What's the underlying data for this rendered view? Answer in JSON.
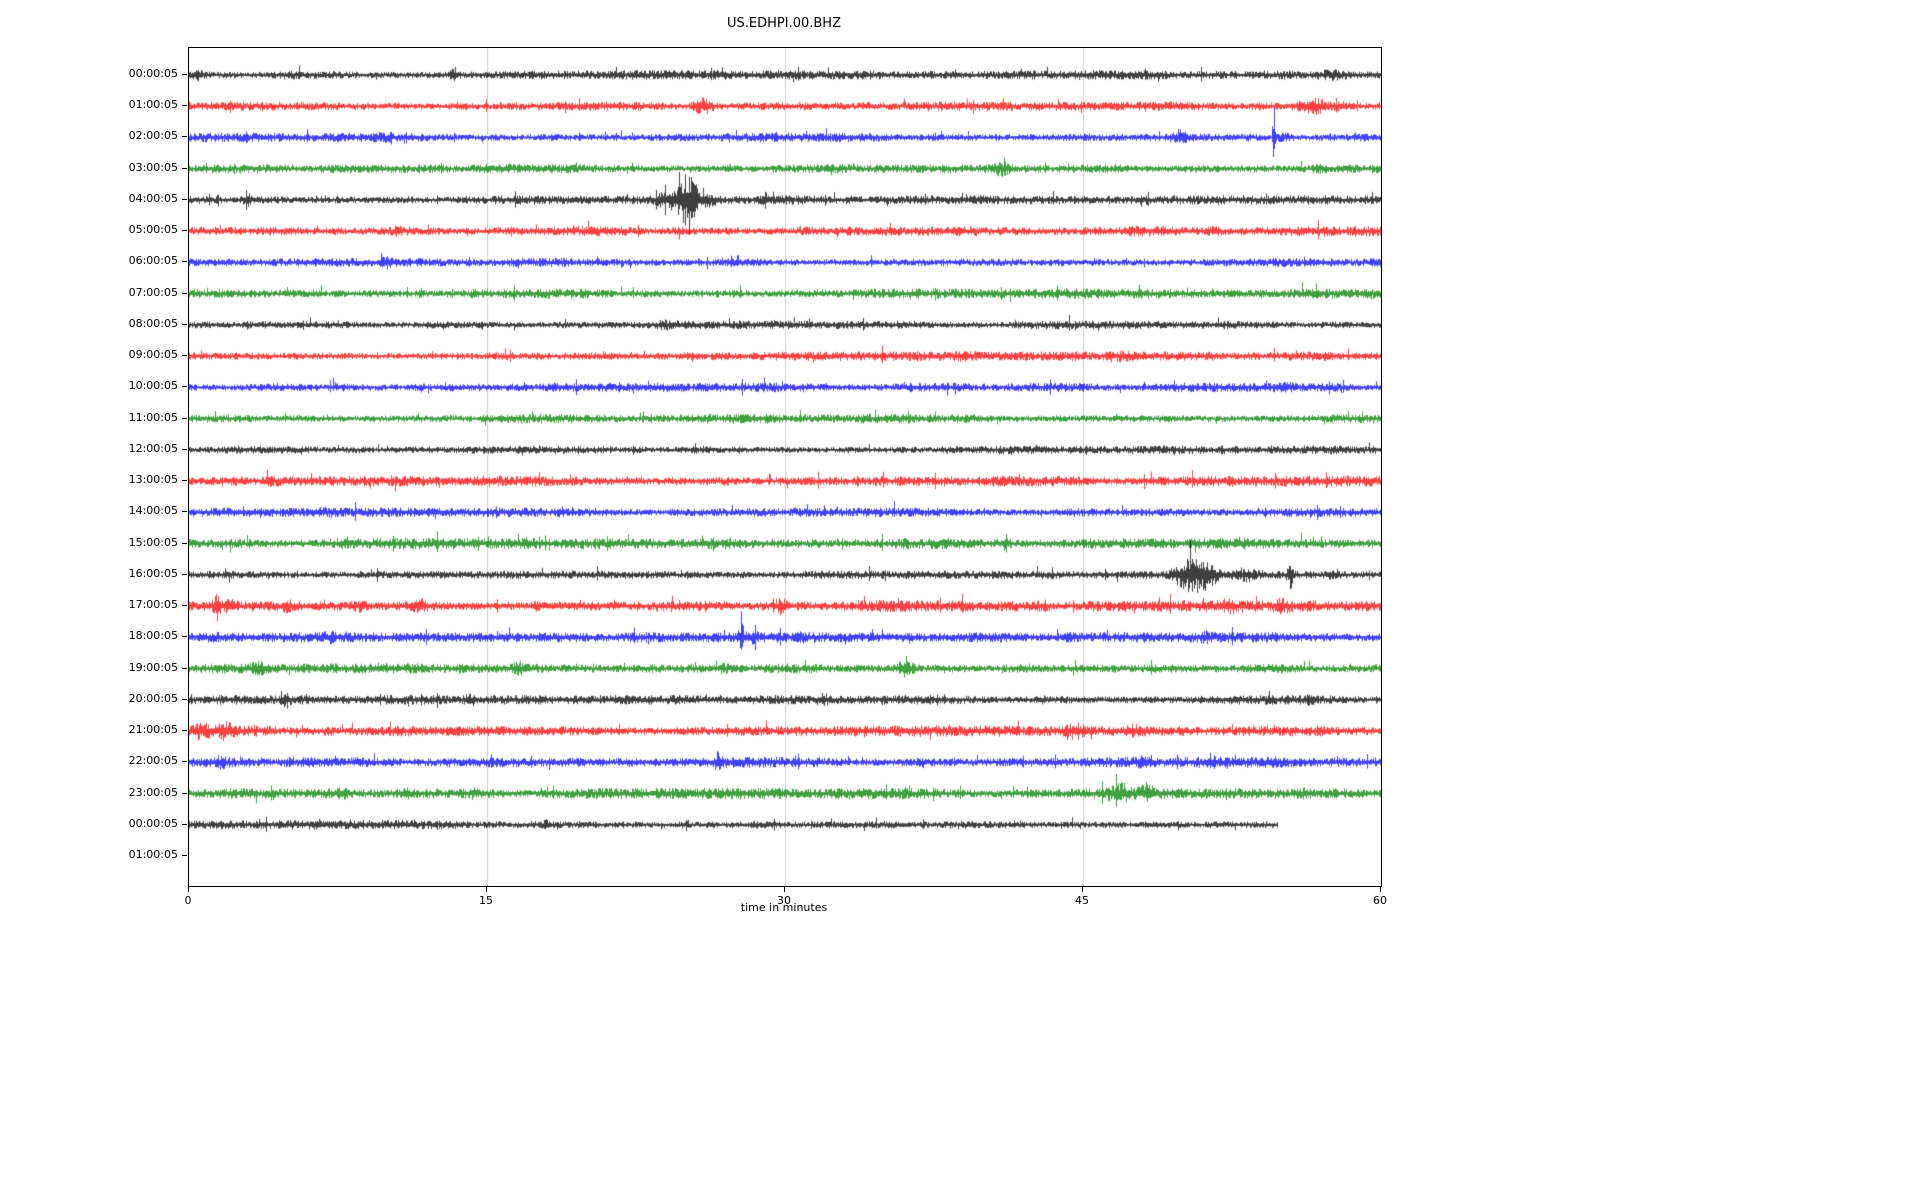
{
  "chart_data": {
    "type": "line",
    "subtype": "helicorder-dayplot-seismogram",
    "title": "US.EDHPI.00.BHZ",
    "xlabel": "time in minutes",
    "x_range": [
      0,
      60
    ],
    "x_ticks": [
      0,
      15,
      30,
      45,
      60
    ],
    "grid": {
      "vertical_lines_min": [
        15,
        30,
        45
      ],
      "color": "#c9c9c9",
      "horizontal": false
    },
    "trace_colors_cycle": [
      "#000000",
      "#ff0000",
      "#0000ff",
      "#008000"
    ],
    "legend": "none",
    "rows": [
      {
        "label": "00:00:05",
        "color": "#000000",
        "amp": 1.0,
        "events": [
          {
            "t": 0.4,
            "a": 1.9,
            "w": 0.25
          },
          {
            "t": 13.3,
            "a": 2.8,
            "w": 0.2
          },
          {
            "t": 57.5,
            "a": 2.0,
            "w": 0.8
          }
        ]
      },
      {
        "label": "01:00:05",
        "color": "#ff0000",
        "amp": 1.0,
        "events": [
          {
            "t": 13.6,
            "a": 1.6,
            "w": 0.3
          },
          {
            "t": 25.8,
            "a": 3.0,
            "w": 0.5
          },
          {
            "t": 56.6,
            "a": 2.8,
            "w": 0.8
          },
          {
            "t": 58.0,
            "a": 1.8,
            "w": 0.4
          }
        ]
      },
      {
        "label": "02:00:05",
        "color": "#0000ff",
        "amp": 1.0,
        "events": [
          {
            "t": 10.0,
            "a": 1.3,
            "w": 0.5
          },
          {
            "t": 49.8,
            "a": 2.0,
            "w": 0.4
          },
          {
            "t": 54.6,
            "a": 9.0,
            "w": 0.06
          },
          {
            "t": 55.1,
            "a": 1.5,
            "w": 0.3
          }
        ]
      },
      {
        "label": "03:00:05",
        "color": "#008000",
        "amp": 1.0,
        "events": [
          {
            "t": 40.9,
            "a": 2.0,
            "w": 0.4
          },
          {
            "t": 57.0,
            "a": 1.4,
            "w": 0.5
          }
        ]
      },
      {
        "label": "04:00:05",
        "color": "#000000",
        "amp": 1.0,
        "events": [
          {
            "t": 2.9,
            "a": 2.6,
            "w": 0.2
          },
          {
            "t": 24.2,
            "a": 2.4,
            "w": 0.6
          },
          {
            "t": 25.1,
            "a": 6.0,
            "w": 0.5
          },
          {
            "t": 26.1,
            "a": 2.0,
            "w": 0.5
          },
          {
            "t": 48.0,
            "a": 1.4,
            "w": 0.3
          }
        ]
      },
      {
        "label": "05:00:05",
        "color": "#ff0000",
        "amp": 1.1,
        "events": [
          {
            "t": 2.0,
            "a": 1.4,
            "w": 0.5
          },
          {
            "t": 10.5,
            "a": 1.5,
            "w": 0.5
          },
          {
            "t": 51.5,
            "a": 1.4,
            "w": 0.4
          }
        ]
      },
      {
        "label": "06:00:05",
        "color": "#0000ff",
        "amp": 1.0,
        "events": [
          {
            "t": 9.9,
            "a": 1.6,
            "w": 0.4
          },
          {
            "t": 44.0,
            "a": 1.3,
            "w": 0.3
          }
        ]
      },
      {
        "label": "07:00:05",
        "color": "#008000",
        "amp": 1.1,
        "events": [
          {
            "t": 14.5,
            "a": 1.3,
            "w": 0.4
          }
        ]
      },
      {
        "label": "08:00:05",
        "color": "#000000",
        "amp": 0.9,
        "events": [
          {
            "t": 8.0,
            "a": 1.3,
            "w": 0.4
          },
          {
            "t": 24.0,
            "a": 1.3,
            "w": 0.4
          }
        ]
      },
      {
        "label": "09:00:05",
        "color": "#ff0000",
        "amp": 1.0,
        "events": [
          {
            "t": 39.0,
            "a": 1.3,
            "w": 0.4
          },
          {
            "t": 47.0,
            "a": 1.3,
            "w": 0.4
          }
        ]
      },
      {
        "label": "10:00:05",
        "color": "#0000ff",
        "amp": 1.0,
        "events": [
          {
            "t": 7.5,
            "a": 1.3,
            "w": 0.4
          },
          {
            "t": 55.0,
            "a": 1.4,
            "w": 0.4
          }
        ]
      },
      {
        "label": "11:00:05",
        "color": "#008000",
        "amp": 1.0,
        "events": [
          {
            "t": 49.0,
            "a": 1.3,
            "w": 0.4
          }
        ]
      },
      {
        "label": "12:00:05",
        "color": "#000000",
        "amp": 0.9,
        "events": [
          {
            "t": 25.5,
            "a": 1.4,
            "w": 0.4
          }
        ]
      },
      {
        "label": "13:00:05",
        "color": "#ff0000",
        "amp": 1.15,
        "events": [
          {
            "t": 4.0,
            "a": 1.4,
            "w": 0.4
          },
          {
            "t": 27.0,
            "a": 1.3,
            "w": 0.4
          }
        ]
      },
      {
        "label": "14:00:05",
        "color": "#0000ff",
        "amp": 1.0,
        "events": [
          {
            "t": 7.0,
            "a": 1.4,
            "w": 0.4
          },
          {
            "t": 44.5,
            "a": 1.4,
            "w": 0.4
          }
        ]
      },
      {
        "label": "15:00:05",
        "color": "#008000",
        "amp": 1.2,
        "events": [
          {
            "t": 41.0,
            "a": 1.3,
            "w": 0.4
          }
        ]
      },
      {
        "label": "16:00:05",
        "color": "#000000",
        "amp": 0.9,
        "events": [
          {
            "t": 50.4,
            "a": 4.5,
            "w": 0.7
          },
          {
            "t": 51.3,
            "a": 3.0,
            "w": 0.4
          },
          {
            "t": 53.2,
            "a": 2.0,
            "w": 0.5
          },
          {
            "t": 55.4,
            "a": 4.0,
            "w": 0.12
          },
          {
            "t": 57.5,
            "a": 1.6,
            "w": 0.3
          }
        ]
      },
      {
        "label": "17:00:05",
        "color": "#ff0000",
        "amp": 1.25,
        "events": [
          {
            "t": 1.4,
            "a": 3.5,
            "w": 0.15
          },
          {
            "t": 2.0,
            "a": 2.0,
            "w": 0.3
          },
          {
            "t": 5.0,
            "a": 1.6,
            "w": 0.3
          },
          {
            "t": 8.6,
            "a": 1.8,
            "w": 0.3
          },
          {
            "t": 11.6,
            "a": 1.8,
            "w": 0.3
          },
          {
            "t": 17.6,
            "a": 1.7,
            "w": 0.3
          },
          {
            "t": 29.8,
            "a": 1.8,
            "w": 0.3
          },
          {
            "t": 43.0,
            "a": 1.4,
            "w": 0.3
          },
          {
            "t": 52.3,
            "a": 1.8,
            "w": 0.3
          },
          {
            "t": 55.0,
            "a": 1.5,
            "w": 0.3
          }
        ]
      },
      {
        "label": "18:00:05",
        "color": "#0000ff",
        "amp": 1.1,
        "events": [
          {
            "t": 7.0,
            "a": 1.4,
            "w": 0.3
          },
          {
            "t": 27.8,
            "a": 2.8,
            "w": 0.15
          },
          {
            "t": 28.3,
            "a": 1.5,
            "w": 0.3
          },
          {
            "t": 51.2,
            "a": 1.6,
            "w": 0.3
          }
        ]
      },
      {
        "label": "19:00:05",
        "color": "#008000",
        "amp": 1.15,
        "events": [
          {
            "t": 3.6,
            "a": 1.8,
            "w": 0.4
          },
          {
            "t": 16.6,
            "a": 1.7,
            "w": 0.4
          },
          {
            "t": 26.9,
            "a": 1.8,
            "w": 0.3
          },
          {
            "t": 35.9,
            "a": 3.2,
            "w": 0.2
          },
          {
            "t": 36.3,
            "a": 1.8,
            "w": 0.3
          }
        ]
      },
      {
        "label": "20:00:05",
        "color": "#000000",
        "amp": 1.0,
        "events": [
          {
            "t": 4.9,
            "a": 1.9,
            "w": 0.2
          },
          {
            "t": 14.2,
            "a": 1.5,
            "w": 0.3
          },
          {
            "t": 31.9,
            "a": 1.8,
            "w": 0.3
          },
          {
            "t": 43.0,
            "a": 1.3,
            "w": 0.3
          },
          {
            "t": 56.5,
            "a": 1.4,
            "w": 0.3
          }
        ]
      },
      {
        "label": "21:00:05",
        "color": "#ff0000",
        "amp": 1.2,
        "events": [
          {
            "t": 0.6,
            "a": 2.2,
            "w": 0.5
          },
          {
            "t": 1.8,
            "a": 2.0,
            "w": 0.4
          },
          {
            "t": 7.0,
            "a": 1.4,
            "w": 0.3
          },
          {
            "t": 44.6,
            "a": 1.9,
            "w": 0.5
          },
          {
            "t": 47.6,
            "a": 1.8,
            "w": 0.4
          },
          {
            "t": 57.0,
            "a": 1.4,
            "w": 0.3
          }
        ]
      },
      {
        "label": "22:00:05",
        "color": "#0000ff",
        "amp": 1.2,
        "events": [
          {
            "t": 1.5,
            "a": 1.7,
            "w": 0.4
          },
          {
            "t": 5.0,
            "a": 1.5,
            "w": 0.3
          },
          {
            "t": 8.7,
            "a": 1.6,
            "w": 0.3
          },
          {
            "t": 22.0,
            "a": 1.4,
            "w": 0.3
          },
          {
            "t": 26.6,
            "a": 2.2,
            "w": 0.15
          },
          {
            "t": 37.0,
            "a": 1.5,
            "w": 0.2
          },
          {
            "t": 48.0,
            "a": 1.7,
            "w": 0.3
          }
        ]
      },
      {
        "label": "23:00:05",
        "color": "#008000",
        "amp": 1.2,
        "events": [
          {
            "t": 7.8,
            "a": 1.5,
            "w": 0.3
          },
          {
            "t": 11.0,
            "a": 1.5,
            "w": 0.3
          },
          {
            "t": 14.2,
            "a": 1.5,
            "w": 0.3
          },
          {
            "t": 46.8,
            "a": 2.2,
            "w": 0.5
          },
          {
            "t": 48.2,
            "a": 2.0,
            "w": 0.4
          },
          {
            "t": 56.0,
            "a": 1.5,
            "w": 0.3
          }
        ]
      },
      {
        "label": "00:00:05",
        "color": "#000000",
        "amp": 1.0,
        "end_min": 54.8,
        "events": [
          {
            "t": 18.0,
            "a": 1.5,
            "w": 0.2
          },
          {
            "t": 25.0,
            "a": 1.3,
            "w": 0.3
          }
        ]
      },
      {
        "label": "01:00:05",
        "color": "#000000",
        "amp": 0,
        "has_trace": false,
        "events": []
      }
    ]
  }
}
